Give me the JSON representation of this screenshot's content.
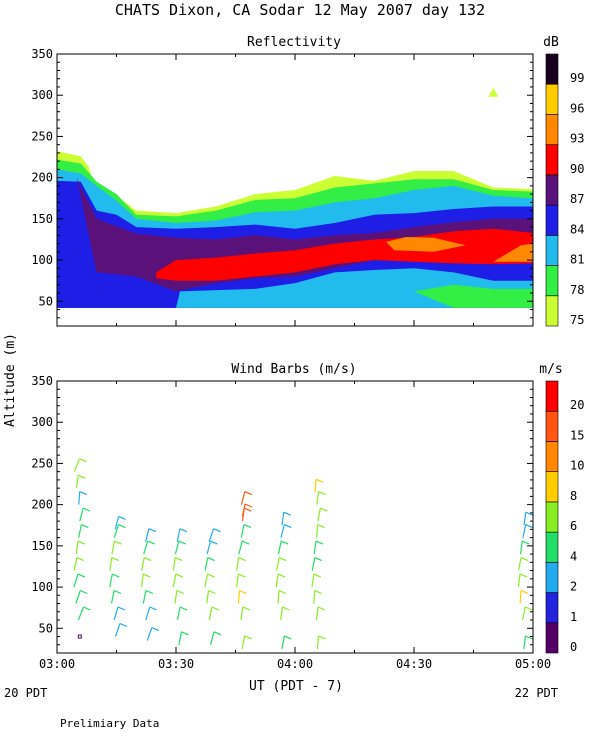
{
  "title": "CHATS Dixon, CA  Sodar  12 May 2007  day 132",
  "footer_note": "Prelimiary Data",
  "x_axis": {
    "label": "UT  (PDT - 7)",
    "ticks": [
      "03:00",
      "03:30",
      "04:00",
      "04:30",
      "05:00"
    ],
    "left_date": "20 PDT",
    "right_date": "22 PDT"
  },
  "y_axis_label": "Altitude (m)",
  "chart_data": [
    {
      "type": "heatmap",
      "title": "Reflectivity",
      "ylim": [
        20,
        350
      ],
      "xlim_minutes": [
        0,
        120
      ],
      "yticks": [
        "50",
        "100",
        "150",
        "200",
        "250",
        "300",
        "350"
      ],
      "colorbar": {
        "unit": "dB",
        "labels": [
          "75",
          "78",
          "81",
          "84",
          "87",
          "90",
          "93",
          "96",
          "99"
        ],
        "colors": [
          "#ccff33",
          "#33ee44",
          "#22bbee",
          "#1e1ee6",
          "#5a127a",
          "#ff0000",
          "#ff8800",
          "#ffcc00",
          "#1a0020"
        ]
      },
      "layers": [
        {
          "level": "75",
          "color": "#ccff33",
          "top": [
            [
              0,
              232
            ],
            [
              6,
              226
            ],
            [
              8,
              213
            ],
            [
              9,
              197
            ],
            [
              15,
              178
            ],
            [
              20,
              160
            ],
            [
              30,
              157
            ],
            [
              40,
              165
            ],
            [
              50,
              180
            ],
            [
              60,
              185
            ],
            [
              70,
              202
            ],
            [
              80,
              196
            ],
            [
              90,
              208
            ],
            [
              100,
              208
            ],
            [
              110,
              188
            ],
            [
              120,
              186
            ]
          ],
          "bottom": 42
        },
        {
          "level": "78",
          "color": "#33ee44",
          "top": [
            [
              0,
              222
            ],
            [
              6,
              217
            ],
            [
              10,
              195
            ],
            [
              15,
              180
            ],
            [
              20,
              155
            ],
            [
              30,
              153
            ],
            [
              40,
              160
            ],
            [
              50,
              173
            ],
            [
              60,
              175
            ],
            [
              70,
              188
            ],
            [
              80,
              193
            ],
            [
              90,
              198
            ],
            [
              100,
              198
            ],
            [
              110,
              185
            ],
            [
              120,
              183
            ]
          ],
          "bottom": 42
        },
        {
          "level": "81",
          "color": "#22bbee",
          "top": [
            [
              0,
              210
            ],
            [
              6,
              205
            ],
            [
              10,
              190
            ],
            [
              15,
              172
            ],
            [
              20,
              150
            ],
            [
              30,
              145
            ],
            [
              40,
              148
            ],
            [
              50,
              158
            ],
            [
              60,
              160
            ],
            [
              70,
              170
            ],
            [
              80,
              175
            ],
            [
              90,
              185
            ],
            [
              100,
              190
            ],
            [
              110,
              178
            ],
            [
              120,
              175
            ]
          ],
          "bottom": 42
        },
        {
          "level": "84",
          "color": "#1e1ee6",
          "top": [
            [
              0,
              196
            ],
            [
              6,
              195
            ],
            [
              10,
              160
            ],
            [
              15,
              155
            ],
            [
              20,
              140
            ],
            [
              30,
              138
            ],
            [
              40,
              140
            ],
            [
              50,
              143
            ],
            [
              60,
              138
            ],
            [
              70,
              145
            ],
            [
              80,
              155
            ],
            [
              90,
              157
            ],
            [
              100,
              162
            ],
            [
              110,
              165
            ],
            [
              120,
              165
            ]
          ],
          "bottom": 42
        },
        {
          "level": "87",
          "color": "#5a127a",
          "top": [
            [
              5,
              200
            ],
            [
              6,
              188
            ],
            [
              10,
              150
            ],
            [
              20,
              132
            ],
            [
              30,
              127
            ],
            [
              40,
              125
            ],
            [
              50,
              130
            ],
            [
              60,
              125
            ],
            [
              70,
              130
            ],
            [
              80,
              133
            ],
            [
              90,
              140
            ],
            [
              100,
              146
            ],
            [
              110,
              150
            ],
            [
              120,
              150
            ]
          ],
          "bottom_line": [
            [
              10,
              85
            ],
            [
              20,
              80
            ],
            [
              30,
              62
            ],
            [
              40,
              72
            ],
            [
              50,
              78
            ],
            [
              60,
              80
            ],
            [
              70,
              90
            ],
            [
              80,
              100
            ],
            [
              90,
              100
            ],
            [
              100,
              100
            ],
            [
              110,
              100
            ],
            [
              120,
              100
            ]
          ]
        },
        {
          "level": "90",
          "color": "#ff0000",
          "top": [
            [
              25,
              85
            ],
            [
              30,
              100
            ],
            [
              40,
              103
            ],
            [
              50,
              108
            ],
            [
              60,
              112
            ],
            [
              70,
              120
            ],
            [
              80,
              125
            ],
            [
              90,
              128
            ],
            [
              100,
              135
            ],
            [
              110,
              138
            ],
            [
              120,
              133
            ]
          ],
          "bottom_line": [
            [
              25,
              78
            ],
            [
              30,
              75
            ],
            [
              40,
              75
            ],
            [
              50,
              80
            ],
            [
              60,
              85
            ],
            [
              70,
              95
            ],
            [
              80,
              100
            ],
            [
              90,
              98
            ],
            [
              100,
              96
            ],
            [
              110,
              95
            ],
            [
              120,
              96
            ]
          ]
        },
        {
          "level": "93",
          "color": "#ff8800",
          "patches": [
            [
              [
                83,
                122
              ],
              [
                88,
                128
              ],
              [
                95,
                127
              ],
              [
                103,
                118
              ],
              [
                95,
                110
              ],
              [
                85,
                112
              ]
            ],
            [
              [
                110,
                98
              ],
              [
                117,
                118
              ],
              [
                120,
                120
              ],
              [
                120,
                98
              ]
            ]
          ]
        }
      ],
      "low_patches": [
        {
          "level": "84",
          "color": "#1e1ee6",
          "poly": [
            [
              0,
              42
            ],
            [
              0,
              70
            ],
            [
              10,
              85
            ],
            [
              20,
              80
            ],
            [
              28,
              55
            ],
            [
              30,
              42
            ]
          ]
        },
        {
          "level": "81",
          "color": "#22bbee",
          "poly": [
            [
              30,
              42
            ],
            [
              31,
              62
            ],
            [
              50,
              65
            ],
            [
              60,
              72
            ],
            [
              70,
              85
            ],
            [
              80,
              88
            ],
            [
              90,
              90
            ],
            [
              100,
              85
            ],
            [
              110,
              75
            ],
            [
              120,
              75
            ],
            [
              120,
              42
            ]
          ]
        },
        {
          "level": "78",
          "color": "#33ee44",
          "poly": [
            [
              100,
              42
            ],
            [
              90,
              62
            ],
            [
              100,
              70
            ],
            [
              110,
              65
            ],
            [
              120,
              65
            ],
            [
              120,
              42
            ]
          ]
        }
      ],
      "marker": {
        "x_minutes": 110,
        "y": 303,
        "color": "#ccff33"
      }
    },
    {
      "type": "scatter",
      "title": "Wind Barbs (m/s)",
      "ylim": [
        20,
        350
      ],
      "xlim_minutes": [
        0,
        120
      ],
      "yticks": [
        "50",
        "100",
        "150",
        "200",
        "250",
        "300",
        "350"
      ],
      "colorbar": {
        "unit": "m/s",
        "labels": [
          "0",
          "1",
          "2",
          "4",
          "6",
          "8",
          "10",
          "15",
          "20"
        ],
        "colors": [
          "#550066",
          "#2222dd",
          "#22aaee",
          "#22dd66",
          "#88ee22",
          "#ffcc00",
          "#ff8800",
          "#ff5511",
          "#ff0000"
        ]
      },
      "profiles": [
        {
          "t": 5,
          "obs": [
            [
              40,
              0,
              0
            ],
            [
              60,
              4,
              100
            ],
            [
              80,
              4,
              120
            ],
            [
              100,
              5,
              130
            ],
            [
              120,
              6,
              150
            ],
            [
              140,
              6,
              160
            ],
            [
              160,
              5,
              150
            ],
            [
              180,
              4,
              140
            ],
            [
              200,
              3,
              170
            ],
            [
              220,
              6,
              160
            ],
            [
              240,
              7,
              80
            ]
          ]
        },
        {
          "t": 14,
          "obs": [
            [
              40,
              3,
              120
            ],
            [
              60,
              3,
              130
            ],
            [
              80,
              4,
              150
            ],
            [
              100,
              5,
              150
            ],
            [
              120,
              6,
              160
            ],
            [
              140,
              6,
              150
            ],
            [
              160,
              4,
              130
            ],
            [
              170,
              3,
              140
            ]
          ]
        },
        {
          "t": 22,
          "obs": [
            [
              35,
              3,
              120
            ],
            [
              60,
              3,
              130
            ],
            [
              80,
              4,
              150
            ],
            [
              100,
              6,
              160
            ],
            [
              120,
              6,
              150
            ],
            [
              140,
              4,
              130
            ],
            [
              155,
              3,
              140
            ]
          ]
        },
        {
          "t": 30,
          "obs": [
            [
              30,
              4,
              150
            ],
            [
              60,
              5,
              150
            ],
            [
              80,
              6,
              160
            ],
            [
              100,
              6,
              150
            ],
            [
              120,
              6,
              160
            ],
            [
              140,
              4,
              140
            ],
            [
              155,
              3,
              150
            ]
          ]
        },
        {
          "t": 38,
          "obs": [
            [
              30,
              5,
              140
            ],
            [
              60,
              6,
              150
            ],
            [
              80,
              6,
              160
            ],
            [
              100,
              6,
              150
            ],
            [
              120,
              5,
              150
            ],
            [
              140,
              3,
              140
            ],
            [
              155,
              3,
              120
            ]
          ]
        },
        {
          "t": 46,
          "obs": [
            [
              25,
              6,
              150
            ],
            [
              60,
              7,
              160
            ],
            [
              80,
              8,
              170
            ],
            [
              100,
              7,
              160
            ],
            [
              120,
              6,
              160
            ],
            [
              140,
              4,
              140
            ],
            [
              160,
              4,
              150
            ],
            [
              185,
              15,
              150
            ],
            [
              200,
              17,
              140
            ],
            [
              180,
              16,
              160
            ]
          ]
        },
        {
          "t": 56,
          "obs": [
            [
              25,
              5,
              150
            ],
            [
              60,
              6,
              160
            ],
            [
              80,
              6,
              170
            ],
            [
              100,
              6,
              160
            ],
            [
              120,
              6,
              150
            ],
            [
              140,
              4,
              150
            ],
            [
              160,
              3,
              140
            ],
            [
              175,
              3,
              160
            ]
          ]
        },
        {
          "t": 65,
          "obs": [
            [
              25,
              6,
              170
            ],
            [
              60,
              6,
              160
            ],
            [
              80,
              7,
              170
            ],
            [
              100,
              6,
              160
            ],
            [
              120,
              5,
              150
            ],
            [
              140,
              5,
              160
            ],
            [
              160,
              6,
              170
            ],
            [
              180,
              6,
              150
            ],
            [
              200,
              7,
              160
            ],
            [
              215,
              8,
              170
            ]
          ]
        },
        {
          "t": 117,
          "obs": [
            [
              25,
              4,
              160
            ],
            [
              60,
              6,
              150
            ],
            [
              80,
              8,
              170
            ],
            [
              100,
              7,
              160
            ],
            [
              120,
              6,
              150
            ],
            [
              140,
              4,
              160
            ],
            [
              160,
              3,
              150
            ],
            [
              175,
              3,
              160
            ]
          ]
        }
      ]
    }
  ]
}
